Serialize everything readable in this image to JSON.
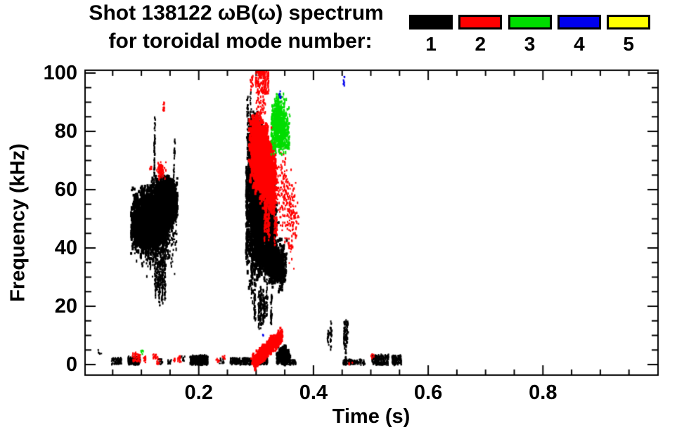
{
  "title": {
    "line1": "Shot 138122 ωB(ω) spectrum",
    "line2": "for toroidal mode number:"
  },
  "legend": {
    "modes": [
      {
        "label": "1",
        "color": "#000000"
      },
      {
        "label": "2",
        "color": "#ff0000"
      },
      {
        "label": "3",
        "color": "#00dd00"
      },
      {
        "label": "4",
        "color": "#0000ee"
      },
      {
        "label": "5",
        "color": "#ffff00"
      }
    ]
  },
  "chart_data": {
    "type": "scatter",
    "title": "Shot 138122 ωB(ω) spectrum for toroidal mode number: 1 2 3 4 5",
    "xlabel": "Time (s)",
    "ylabel": "Frequency (kHz)",
    "xlim": [
      0,
      1.0
    ],
    "ylim": [
      0,
      100
    ],
    "grid": false,
    "x_major_ticks": [
      0.2,
      0.4,
      0.6,
      0.8
    ],
    "x_tick_labels": [
      "0.2",
      "0.4",
      "0.6",
      "0.8"
    ],
    "x_minor_step": 0.05,
    "y_major_ticks": [
      100,
      80,
      60,
      40,
      20,
      0
    ],
    "y_tick_labels": [
      "100",
      "80",
      "60",
      "40",
      "20",
      "0"
    ],
    "y_minor_step": 5,
    "series": [
      {
        "name": "n=1",
        "color": "#000000",
        "clusters": [
          {
            "shape": "gauss",
            "t": 0.113,
            "f": 49.5,
            "st": 0.015,
            "sf": 4.8,
            "n": 2200,
            "dash": [
              3,
              7
            ],
            "w": 3,
            "clamp": [
              0.082,
              0.16,
              36,
              64
            ]
          },
          {
            "shape": "gauss",
            "t": 0.142,
            "f": 56,
            "st": 0.011,
            "sf": 3.6,
            "n": 1400,
            "dash": [
              3,
              7
            ],
            "w": 3,
            "clamp": [
              0.09,
              0.163,
              40,
              65
            ]
          },
          {
            "shape": "gauss",
            "t": 0.124,
            "f": 45,
            "st": 0.019,
            "sf": 6,
            "n": 650,
            "dash": [
              2,
              5
            ],
            "w": 2,
            "clamp": [
              0.085,
              0.162,
              28,
              62
            ]
          },
          {
            "shape": "streaks",
            "t0": 0.112,
            "t1": 0.152,
            "f0": 20,
            "f1": 42,
            "k": 7,
            "n": 300,
            "dash": [
              2,
              4
            ],
            "w": 2
          },
          {
            "shape": "diag",
            "t0": 0.1225,
            "t1": 0.1235,
            "f0": 62,
            "f1": 84,
            "jt": 0.0005,
            "jf": 1,
            "n": 60,
            "dash": [
              2,
              4
            ],
            "w": 2
          },
          {
            "shape": "diag",
            "t0": 0.156,
            "t1": 0.158,
            "f0": 58,
            "f1": 76,
            "jt": 0.0005,
            "jf": 1,
            "n": 40,
            "dash": [
              2,
              4
            ],
            "w": 2
          },
          {
            "shape": "box",
            "t0": 0.024,
            "t1": 0.031,
            "f0": 3.2,
            "f1": 5,
            "n": 6,
            "dash": [
              2,
              3
            ],
            "w": 2
          },
          {
            "shape": "box",
            "t0": 0.048,
            "t1": 0.066,
            "f0": 0,
            "f1": 2.2,
            "n": 70,
            "dash": [
              2,
              4
            ],
            "w": 2
          },
          {
            "shape": "box",
            "t0": 0.077,
            "t1": 0.098,
            "f0": 0,
            "f1": 2.6,
            "n": 150,
            "dash": [
              2,
              5
            ],
            "w": 2
          },
          {
            "shape": "box",
            "t0": 0.13,
            "t1": 0.137,
            "f0": 0,
            "f1": 2,
            "n": 18,
            "dash": [
              2,
              3
            ],
            "w": 2
          },
          {
            "shape": "box",
            "t0": 0.146,
            "t1": 0.153,
            "f0": 0,
            "f1": 1.6,
            "n": 14,
            "dash": [
              2,
              3
            ],
            "w": 2
          },
          {
            "shape": "box",
            "t0": 0.169,
            "t1": 0.176,
            "f0": 1.2,
            "f1": 3,
            "n": 12,
            "dash": [
              2,
              3
            ],
            "w": 2
          },
          {
            "shape": "box",
            "t0": 0.185,
            "t1": 0.216,
            "f0": 0,
            "f1": 3,
            "n": 260,
            "dash": [
              2,
              5
            ],
            "w": 2
          },
          {
            "shape": "box",
            "t0": 0.236,
            "t1": 0.244,
            "f0": 0.4,
            "f1": 2.2,
            "n": 14,
            "dash": [
              2,
              3
            ],
            "w": 2
          },
          {
            "shape": "box",
            "t0": 0.255,
            "t1": 0.292,
            "f0": 0,
            "f1": 2.2,
            "n": 200,
            "dash": [
              2,
              4
            ],
            "w": 2
          },
          {
            "shape": "box",
            "t0": 0.3,
            "t1": 0.32,
            "f0": 0,
            "f1": 2.5,
            "n": 100,
            "dash": [
              2,
              4
            ],
            "w": 2
          },
          {
            "shape": "gauss",
            "t": 0.347,
            "f": 2.5,
            "st": 0.006,
            "sf": 1.8,
            "n": 250,
            "dash": [
              3,
              6
            ],
            "w": 3,
            "clamp": [
              0.335,
              0.36,
              0,
              6.5
            ]
          },
          {
            "shape": "box",
            "t0": 0.352,
            "t1": 0.369,
            "f0": 0,
            "f1": 1.6,
            "n": 70,
            "dash": [
              2,
              3
            ],
            "w": 2
          },
          {
            "shape": "streaks",
            "t0": 0.421,
            "t1": 0.432,
            "f0": 4,
            "f1": 15,
            "k": 3,
            "n": 45,
            "dash": [
              2,
              4
            ],
            "w": 2
          },
          {
            "shape": "streaks",
            "t0": 0.452,
            "t1": 0.462,
            "f0": 1,
            "f1": 19,
            "k": 3,
            "n": 80,
            "dash": [
              2,
              5
            ],
            "w": 2
          },
          {
            "shape": "box",
            "t0": 0.452,
            "t1": 0.49,
            "f0": 0,
            "f1": 1.8,
            "n": 110,
            "dash": [
              2,
              4
            ],
            "w": 2
          },
          {
            "shape": "box",
            "t0": 0.502,
            "t1": 0.531,
            "f0": 0,
            "f1": 3.2,
            "n": 150,
            "dash": [
              2,
              5
            ],
            "w": 2
          },
          {
            "shape": "box",
            "t0": 0.537,
            "t1": 0.553,
            "f0": 0,
            "f1": 3,
            "n": 100,
            "dash": [
              2,
              5
            ],
            "w": 2
          },
          {
            "shape": "streaks",
            "t0": 0.283,
            "t1": 0.293,
            "f0": 18,
            "f1": 88,
            "k": 6,
            "n": 400,
            "dash": [
              2,
              6
            ],
            "w": 2
          },
          {
            "shape": "diag",
            "t0": 0.292,
            "t1": 0.328,
            "f0": 68,
            "f1": 46,
            "jt": 0.004,
            "jf": 8,
            "n": 3200,
            "dash": [
              3,
              8
            ],
            "w": 3,
            "clamp": [
              0.283,
              0.345,
              28,
              88
            ]
          },
          {
            "shape": "diag",
            "t0": 0.298,
            "t1": 0.347,
            "f0": 40,
            "f1": 33,
            "jt": 0.003,
            "jf": 3.5,
            "n": 900,
            "dash": [
              3,
              6
            ],
            "w": 3
          },
          {
            "shape": "gauss",
            "t": 0.297,
            "f": 57,
            "st": 0.005,
            "sf": 13,
            "n": 700,
            "dash": [
              3,
              7
            ],
            "w": 3,
            "clamp": [
              0.285,
              0.315,
              25,
              88
            ]
          },
          {
            "shape": "streaks",
            "t0": 0.296,
            "t1": 0.332,
            "f0": 11,
            "f1": 30,
            "k": 8,
            "n": 260,
            "dash": [
              2,
              5
            ],
            "w": 2
          },
          {
            "shape": "box",
            "t0": 0.335,
            "t1": 0.353,
            "f0": 30,
            "f1": 38,
            "n": 150,
            "dash": [
              2,
              4
            ],
            "w": 2
          },
          {
            "shape": "streaks",
            "t0": 0.284,
            "t1": 0.291,
            "f0": 75,
            "f1": 95,
            "k": 3,
            "n": 60,
            "dash": [
              2,
              4
            ],
            "w": 2
          }
        ]
      },
      {
        "name": "n=2",
        "color": "#ff0000",
        "clusters": [
          {
            "shape": "gauss",
            "t": 0.1335,
            "f": 67,
            "st": 0.0035,
            "sf": 1.6,
            "n": 80,
            "dash": [
              2,
              4
            ],
            "w": 2,
            "clamp": [
              0.126,
              0.143,
              63.5,
              70.5
            ]
          },
          {
            "shape": "box",
            "t0": 0.1372,
            "t1": 0.1405,
            "f0": 87,
            "f1": 90.5,
            "n": 14,
            "dash": [
              2,
              4
            ],
            "w": 2
          },
          {
            "shape": "box",
            "t0": 0.1145,
            "t1": 0.118,
            "f0": 66.3,
            "f1": 68.2,
            "n": 7,
            "dash": [
              2,
              3
            ],
            "w": 2
          },
          {
            "shape": "box",
            "t0": 0.299,
            "t1": 0.322,
            "f0": 93,
            "f1": 101,
            "n": 180,
            "dash": [
              2,
              5
            ],
            "w": 2
          },
          {
            "shape": "box",
            "t0": 0.3,
            "t1": 0.316,
            "f0": 86,
            "f1": 93,
            "n": 40,
            "dash": [
              2,
              4
            ],
            "w": 2
          },
          {
            "shape": "box",
            "t0": 0.29,
            "t1": 0.295,
            "f0": 94,
            "f1": 99,
            "n": 16,
            "dash": [
              2,
              4
            ],
            "w": 2
          },
          {
            "shape": "diag",
            "t0": 0.295,
            "t1": 0.33,
            "f0": 77,
            "f1": 62,
            "jt": 0.004,
            "jf": 5.5,
            "n": 2400,
            "dash": [
              3,
              7
            ],
            "w": 3,
            "clamp": [
              0.287,
              0.34,
              52,
              86
            ]
          },
          {
            "shape": "gauss",
            "t": 0.307,
            "f": 70,
            "st": 0.007,
            "sf": 5,
            "n": 800,
            "dash": [
              3,
              6
            ],
            "w": 3
          },
          {
            "shape": "streaks",
            "t0": 0.3,
            "t1": 0.338,
            "f0": 40,
            "f1": 56,
            "k": 7,
            "n": 150,
            "dash": [
              2,
              4
            ],
            "w": 2
          },
          {
            "shape": "diag",
            "t0": 0.341,
            "t1": 0.368,
            "f0": 64,
            "f1": 47,
            "jt": 0.004,
            "jf": 6,
            "n": 240,
            "dash": [
              2,
              4
            ],
            "w": 2
          },
          {
            "shape": "box",
            "t0": 0.355,
            "t1": 0.363,
            "f0": 38.5,
            "f1": 43.5,
            "n": 16,
            "dash": [
              2,
              4
            ],
            "w": 2
          },
          {
            "shape": "diag",
            "t0": 0.2955,
            "t1": 0.3445,
            "f0": 0.8,
            "f1": 9.8,
            "jt": 0.0015,
            "jf": 1.1,
            "n": 800,
            "dash": [
              3,
              5
            ],
            "w": 3
          },
          {
            "shape": "box",
            "t0": 0.084,
            "t1": 0.098,
            "f0": 1,
            "f1": 4,
            "n": 45,
            "dash": [
              2,
              4
            ],
            "w": 2
          },
          {
            "shape": "box",
            "t0": 0.104,
            "t1": 0.108,
            "f0": 0.3,
            "f1": 2.8,
            "n": 16,
            "dash": [
              2,
              3
            ],
            "w": 2
          },
          {
            "shape": "box",
            "t0": 0.12,
            "t1": 0.129,
            "f0": 1.8,
            "f1": 3.6,
            "n": 20,
            "dash": [
              2,
              3
            ],
            "w": 2
          },
          {
            "shape": "box",
            "t0": 0.127,
            "t1": 0.133,
            "f0": 0,
            "f1": 1.8,
            "n": 10,
            "dash": [
              2,
              3
            ],
            "w": 2
          },
          {
            "shape": "box",
            "t0": 0.156,
            "t1": 0.161,
            "f0": 0.8,
            "f1": 2.2,
            "n": 8,
            "dash": [
              2,
              3
            ],
            "w": 2
          },
          {
            "shape": "box",
            "t0": 0.163,
            "t1": 0.172,
            "f0": 0.8,
            "f1": 3,
            "n": 14,
            "dash": [
              2,
              3
            ],
            "w": 2
          },
          {
            "shape": "box",
            "t0": 0.23,
            "t1": 0.236,
            "f0": 0.8,
            "f1": 2.2,
            "n": 8,
            "dash": [
              2,
              3
            ],
            "w": 2
          },
          {
            "shape": "box",
            "t0": 0.24,
            "t1": 0.246,
            "f0": 1.8,
            "f1": 3.2,
            "n": 8,
            "dash": [
              2,
              3
            ],
            "w": 2
          },
          {
            "shape": "box",
            "t0": 0.461,
            "t1": 0.468,
            "f0": 0,
            "f1": 1.2,
            "n": 6,
            "dash": [
              2,
              3
            ],
            "w": 2
          },
          {
            "shape": "box",
            "t0": 0.499,
            "t1": 0.507,
            "f0": 1.8,
            "f1": 3.6,
            "n": 8,
            "dash": [
              2,
              3
            ],
            "w": 2
          }
        ]
      },
      {
        "name": "n=3",
        "color": "#00dd00",
        "clusters": [
          {
            "shape": "gauss",
            "t": 0.339,
            "f": 82,
            "st": 0.0072,
            "sf": 4.4,
            "n": 800,
            "dash": [
              2,
              5
            ],
            "w": 2,
            "clamp": [
              0.326,
              0.359,
              71.5,
              93
            ]
          },
          {
            "shape": "box",
            "t0": 0.332,
            "t1": 0.342,
            "f0": 87,
            "f1": 93,
            "n": 45,
            "dash": [
              2,
              4
            ],
            "w": 2
          },
          {
            "shape": "box",
            "t0": 0.344,
            "t1": 0.358,
            "f0": 74,
            "f1": 83,
            "n": 120,
            "dash": [
              2,
              4
            ],
            "w": 2
          },
          {
            "shape": "box",
            "t0": 0.338,
            "t1": 0.344,
            "f0": 73.5,
            "f1": 77,
            "n": 25,
            "dash": [
              2,
              3
            ],
            "w": 2
          },
          {
            "shape": "box",
            "t0": 0.098,
            "t1": 0.104,
            "f0": 3.4,
            "f1": 4.9,
            "n": 6,
            "dash": [
              2,
              3
            ],
            "w": 2
          }
        ]
      },
      {
        "name": "n=4",
        "color": "#0000ee",
        "clusters": [
          {
            "shape": "box",
            "t0": 0.34,
            "t1": 0.3435,
            "f0": 91.5,
            "f1": 94,
            "n": 7,
            "dash": [
              2,
              4
            ],
            "w": 2
          },
          {
            "shape": "box",
            "t0": 0.4515,
            "t1": 0.4545,
            "f0": 95.5,
            "f1": 99,
            "n": 8,
            "dash": [
              2,
              5
            ],
            "w": 2
          },
          {
            "shape": "box",
            "t0": 0.3115,
            "t1": 0.3135,
            "f0": 9.8,
            "f1": 11,
            "n": 3,
            "dash": [
              2,
              3
            ],
            "w": 2
          }
        ]
      },
      {
        "name": "n=5",
        "color": "#ffff00",
        "clusters": []
      }
    ]
  }
}
